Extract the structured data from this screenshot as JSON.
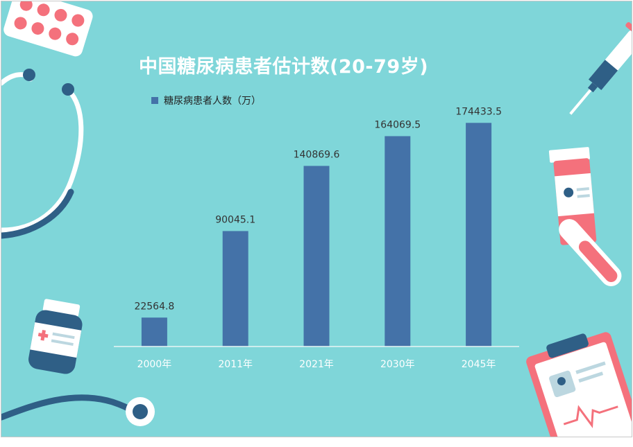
{
  "chart_data": {
    "type": "bar",
    "title": "中国糖尿病患者估计数(20-79岁)",
    "categories": [
      "2000年",
      "2011年",
      "2021年",
      "2030年",
      "2045年"
    ],
    "series": [
      {
        "name": "糖尿病患者人数（万）",
        "values": [
          22564.8,
          90045.1,
          140869.6,
          164069.5,
          174433.5
        ],
        "labels": [
          "22564.8",
          "90045.1",
          "140869.6",
          "164069.5",
          "174433.5"
        ],
        "color": "#4472a8"
      }
    ],
    "legend_position": "top-left",
    "grid": false,
    "ylim": [
      0,
      200000
    ]
  },
  "colors": {
    "background": "#7fd6d9",
    "bar": "#4472a8",
    "title": "#ffffff",
    "pink": "#f4717c",
    "navy": "#2f5f86"
  },
  "decorations": [
    "pill-blister-icon",
    "stethoscope-icon",
    "syringe-icon",
    "medicine-bottle-icon",
    "test-tube-icon",
    "clipboard-icon"
  ]
}
